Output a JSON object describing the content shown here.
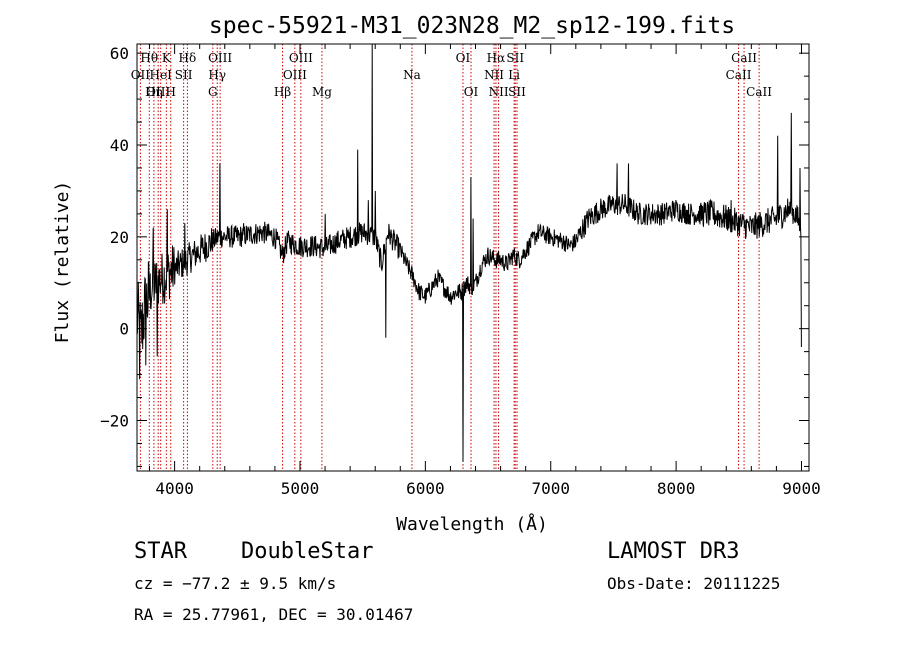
{
  "chart_data": {
    "type": "line",
    "title": "spec-55921-M31_023N28_M2_sp12-199.fits",
    "xlabel": "Wavelength (Å)",
    "ylabel": "Flux (relative)",
    "xlim": [
      3700,
      9060
    ],
    "ylim": [
      -31,
      62
    ],
    "xticks": [
      4000,
      5000,
      6000,
      7000,
      8000,
      9000
    ],
    "xtick_labels": [
      "4000",
      "5000",
      "6000",
      "7000",
      "8000",
      "9000"
    ],
    "yticks": [
      -20,
      0,
      20,
      40,
      60
    ],
    "ytick_labels": [
      "−20",
      "0",
      "20",
      "40",
      "60"
    ],
    "series": [
      {
        "name": "flux",
        "anchors": [
          [
            3700,
            3
          ],
          [
            3730,
            -2
          ],
          [
            3760,
            4
          ],
          [
            3800,
            8
          ],
          [
            3850,
            10
          ],
          [
            3900,
            11
          ],
          [
            3950,
            12
          ],
          [
            4000,
            13
          ],
          [
            4050,
            14
          ],
          [
            4100,
            15
          ],
          [
            4150,
            16
          ],
          [
            4200,
            17
          ],
          [
            4250,
            18
          ],
          [
            4300,
            19
          ],
          [
            4350,
            20
          ],
          [
            4400,
            20
          ],
          [
            4500,
            20
          ],
          [
            4600,
            20.5
          ],
          [
            4700,
            21
          ],
          [
            4800,
            20
          ],
          [
            4861,
            16
          ],
          [
            4900,
            19
          ],
          [
            5000,
            18
          ],
          [
            5100,
            18
          ],
          [
            5200,
            17.5
          ],
          [
            5300,
            19
          ],
          [
            5400,
            20
          ],
          [
            5500,
            21
          ],
          [
            5600,
            20
          ],
          [
            5650,
            14
          ],
          [
            5700,
            21
          ],
          [
            5800,
            17
          ],
          [
            5850,
            14
          ],
          [
            5890,
            12
          ],
          [
            5950,
            8
          ],
          [
            6000,
            7
          ],
          [
            6050,
            9
          ],
          [
            6100,
            11
          ],
          [
            6150,
            9
          ],
          [
            6200,
            7
          ],
          [
            6250,
            8
          ],
          [
            6290,
            8
          ],
          [
            6330,
            10
          ],
          [
            6370,
            9
          ],
          [
            6400,
            10
          ],
          [
            6450,
            14
          ],
          [
            6500,
            16
          ],
          [
            6563,
            15
          ],
          [
            6600,
            15
          ],
          [
            6650,
            14
          ],
          [
            6700,
            16
          ],
          [
            6750,
            15
          ],
          [
            6800,
            17
          ],
          [
            6850,
            19
          ],
          [
            6900,
            21
          ],
          [
            7000,
            20
          ],
          [
            7100,
            19
          ],
          [
            7150,
            18
          ],
          [
            7200,
            19
          ],
          [
            7300,
            24
          ],
          [
            7400,
            26
          ],
          [
            7500,
            27
          ],
          [
            7600,
            27
          ],
          [
            7700,
            25
          ],
          [
            7800,
            25
          ],
          [
            7900,
            25
          ],
          [
            8000,
            26
          ],
          [
            8100,
            25
          ],
          [
            8200,
            25
          ],
          [
            8300,
            25
          ],
          [
            8400,
            24
          ],
          [
            8500,
            23
          ],
          [
            8600,
            22
          ],
          [
            8700,
            23
          ],
          [
            8800,
            24
          ],
          [
            8900,
            26
          ],
          [
            8950,
            25
          ],
          [
            9000,
            22
          ]
        ],
        "noise": [
          [
            3700,
            3800,
            9
          ],
          [
            3800,
            4000,
            6
          ],
          [
            4000,
            4300,
            3.5
          ],
          [
            4300,
            5000,
            2.5
          ],
          [
            5000,
            5800,
            2.5
          ],
          [
            5800,
            6500,
            2
          ],
          [
            6500,
            7200,
            2
          ],
          [
            7200,
            8200,
            2.5
          ],
          [
            8200,
            9000,
            3
          ]
        ],
        "spikes": [
          [
            3720,
            -11
          ],
          [
            3770,
            -8
          ],
          [
            3830,
            22
          ],
          [
            3860,
            -6
          ],
          [
            3940,
            26
          ],
          [
            4080,
            23
          ],
          [
            4360,
            36
          ],
          [
            4550,
            23
          ],
          [
            5200,
            25
          ],
          [
            5460,
            39
          ],
          [
            5545,
            28
          ],
          [
            5577,
            62
          ],
          [
            5600,
            30
          ],
          [
            5685,
            -2
          ],
          [
            6300,
            -29
          ],
          [
            6364,
            33
          ],
          [
            6380,
            24
          ],
          [
            7530,
            36
          ],
          [
            7620,
            36
          ],
          [
            8440,
            28
          ],
          [
            8810,
            42
          ],
          [
            8920,
            47
          ],
          [
            8990,
            35
          ],
          [
            9000,
            -4
          ]
        ]
      }
    ],
    "line_markers": [
      {
        "label": "Hθ",
        "wavelength": 3798,
        "row": 1
      },
      {
        "label": "OII",
        "wavelength": 3727,
        "row": 2
      },
      {
        "label": "OIII",
        "wavelength": 3869,
        "row": 3
      },
      {
        "label": "K",
        "wavelength": 3934,
        "row": 1
      },
      {
        "label": "HeI",
        "wavelength": 3889,
        "row": 2
      },
      {
        "label": "Hη",
        "wavelength": 3835,
        "row": 3
      },
      {
        "label": "Hδ",
        "wavelength": 4102,
        "row": 1
      },
      {
        "label": "SII",
        "wavelength": 4072,
        "row": 2
      },
      {
        "label": "H",
        "wavelength": 3969,
        "row": 3
      },
      {
        "label": "OIII",
        "wavelength": 4363,
        "row": 1
      },
      {
        "label": "Hγ",
        "wavelength": 4340,
        "row": 2
      },
      {
        "label": "G",
        "wavelength": 4305,
        "row": 3
      },
      {
        "label": "OIII",
        "wavelength": 5007,
        "row": 1
      },
      {
        "label": "OIII",
        "wavelength": 4959,
        "row": 2
      },
      {
        "label": "Hβ",
        "wavelength": 4861,
        "row": 3
      },
      {
        "label": "Mg",
        "wavelength": 5175,
        "row": 3
      },
      {
        "label": "Na",
        "wavelength": 5893,
        "row": 2
      },
      {
        "label": "OI",
        "wavelength": 6300,
        "row": 1
      },
      {
        "label": "OI",
        "wavelength": 6364,
        "row": 3
      },
      {
        "label": "Hα",
        "wavelength": 6563,
        "row": 1
      },
      {
        "label": "NII",
        "wavelength": 6548,
        "row": 2
      },
      {
        "label": "NII",
        "wavelength": 6584,
        "row": 3
      },
      {
        "label": "SII",
        "wavelength": 6717,
        "row": 1
      },
      {
        "label": "Li",
        "wavelength": 6708,
        "row": 2
      },
      {
        "label": "SII",
        "wavelength": 6731,
        "row": 3
      },
      {
        "label": "CaII",
        "wavelength": 8542,
        "row": 1
      },
      {
        "label": "CaII",
        "wavelength": 8498,
        "row": 2
      },
      {
        "label": "CaII",
        "wavelength": 8662,
        "row": 3
      }
    ],
    "marker_color": "#cc0000"
  },
  "info": {
    "class": "STAR",
    "subclass": "DoubleStar",
    "survey": "LAMOST DR3",
    "cz": "cz = −77.2 ± 9.5 km/s",
    "obs_date": "Obs-Date: 20111225",
    "coords": "RA =  25.77961, DEC =  30.01467"
  }
}
